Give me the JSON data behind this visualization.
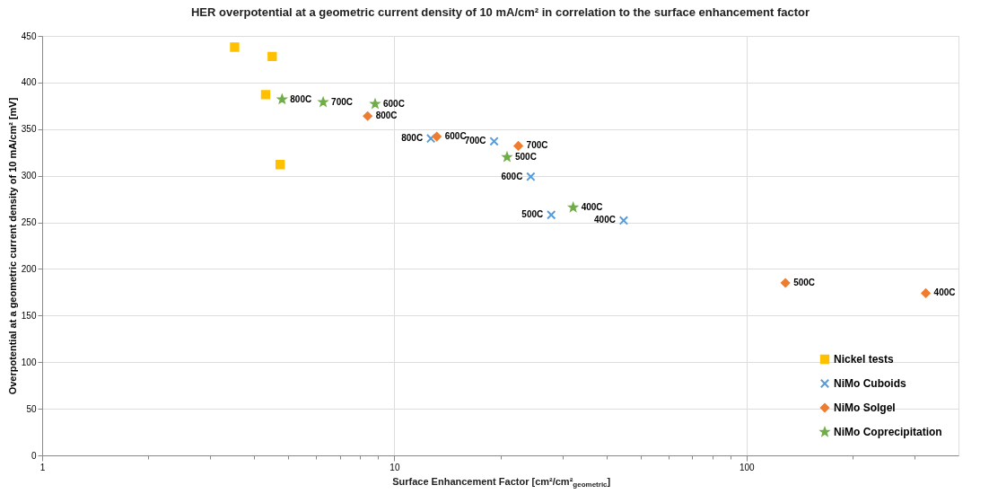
{
  "chart_data": {
    "type": "scatter",
    "title": "HER overpotential at a geometric current density of 10 mA/cm² in correlation to the surface enhancement factor",
    "xlabel": "Surface Enhancement Factor [cm²/cm²$_{geometric}$]",
    "ylabel": "Overpotential at a geometric current density of 10 mA/cm² [mV]",
    "log": "x",
    "xlim": [
      1,
      400
    ],
    "xticks": [
      1,
      {
        "value": 2,
        "label": null
      },
      {
        "value": 3,
        "label": null
      },
      {
        "value": 4,
        "label": null
      },
      {
        "value": 5,
        "label": null
      },
      {
        "value": 6,
        "label": null
      },
      {
        "value": 7,
        "label": null
      },
      {
        "value": 8,
        "label": null
      },
      {
        "value": 9,
        "label": null
      },
      10,
      {
        "value": 20,
        "label": null
      },
      {
        "value": 30,
        "label": null
      },
      {
        "value": 40,
        "label": null
      },
      {
        "value": 50,
        "label": null
      },
      {
        "value": 60,
        "label": null
      },
      {
        "value": 70,
        "label": null
      },
      {
        "value": 80,
        "label": null
      },
      {
        "value": 90,
        "label": null
      },
      100,
      {
        "value": 200,
        "label": null
      },
      {
        "value": 300,
        "label": null
      }
    ],
    "ylim": [
      0,
      450
    ],
    "yticks": [
      0,
      50,
      100,
      150,
      200,
      250,
      300,
      350,
      400,
      450
    ],
    "grid": true,
    "legend": "bottom right",
    "series": [
      {
        "name": "Nickel tests",
        "color": "#ffc000",
        "marker": "square",
        "x": [
          3.52,
          4.5,
          4.31,
          4.74
        ],
        "values": [
          438,
          428,
          387,
          312
        ]
      },
      {
        "name": "NiMo Cuboids",
        "color": "#5b9bd5",
        "marker": "cross",
        "x": [
          12.7,
          19.2,
          24.4,
          27.9,
          44.8
        ],
        "values": [
          340,
          337,
          299,
          258,
          252
        ]
      },
      {
        "name": "NiMo Solgel",
        "color": "#ed7d31",
        "marker": "diamond",
        "x": [
          8.4,
          13.2,
          22.5,
          129,
          323
        ],
        "values": [
          364,
          342,
          332,
          185,
          174
        ]
      },
      {
        "name": "NiMo Coprecipitation",
        "color": "#70ad47",
        "marker": "star",
        "x": [
          4.8,
          6.28,
          8.82,
          20.9,
          32.2
        ],
        "values": [
          382,
          379,
          377,
          320,
          266
        ]
      }
    ],
    "annotations": [
      {
        "text": "800C",
        "x": 12.7,
        "y": 340
      },
      {
        "text": "700C",
        "x": 19.2,
        "y": 337
      },
      {
        "text": "600C",
        "x": 24.4,
        "y": 299
      },
      {
        "text": "500C",
        "x": 27.9,
        "y": 258
      },
      {
        "text": "400C",
        "x": 44.8,
        "y": 252
      },
      {
        "text": "800C",
        "x": 8.4,
        "y": 364
      },
      {
        "text": "600C",
        "x": 13.2,
        "y": 342
      },
      {
        "text": "700C",
        "x": 22.5,
        "y": 332
      },
      {
        "text": "500C",
        "x": 129,
        "y": 185
      },
      {
        "text": "400C",
        "x": 323,
        "y": 174
      },
      {
        "text": "800C",
        "x": 4.8,
        "y": 382
      },
      {
        "text": "700C",
        "x": 6.28,
        "y": 379
      },
      {
        "text": "600C",
        "x": 8.82,
        "y": 377
      },
      {
        "text": "500C",
        "x": 20.9,
        "y": 320
      },
      {
        "text": "400C",
        "x": 32.2,
        "y": 266
      }
    ]
  }
}
